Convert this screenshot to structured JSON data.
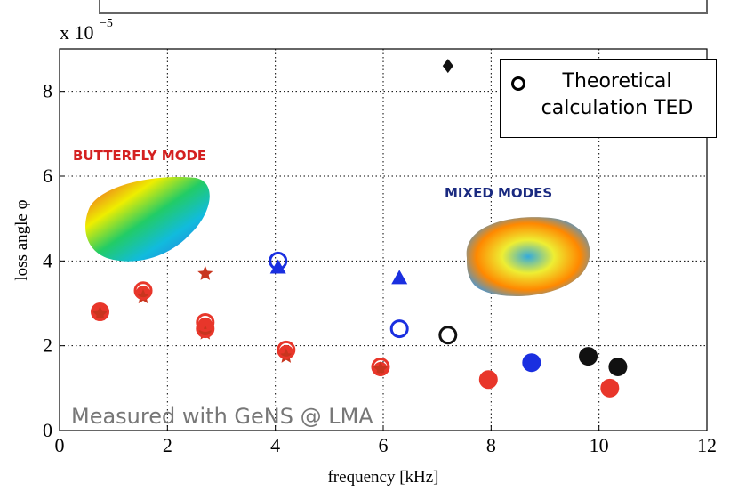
{
  "chart_data": {
    "type": "scatter",
    "axis_multiplier": "x 10",
    "axis_exponent": "−5",
    "x_label": "frequency [kHz]",
    "y_label": "loss angle φ",
    "xlim": [
      0,
      12
    ],
    "xticks": [
      0,
      2,
      4,
      6,
      8,
      10,
      12
    ],
    "ylim": [
      0,
      9
    ],
    "yticks": [
      0,
      2,
      4,
      6,
      8
    ],
    "grid": true,
    "annotations": [
      "BUTTERFLY MODE",
      "MIXED MODES",
      "Measured with GeNS @ LMA"
    ],
    "series": [
      {
        "color": "#e8362a",
        "marker": "circle",
        "filled": true,
        "x": [
          0.75,
          1.55,
          2.7,
          2.7,
          4.2,
          5.95,
          7.95,
          10.2
        ],
        "values": [
          2.8,
          3.25,
          2.5,
          2.4,
          1.85,
          1.45,
          1.2,
          1.0
        ]
      },
      {
        "color": "#c8351e",
        "marker": "star",
        "filled": true,
        "x": [
          0.75,
          1.55,
          2.7,
          2.7,
          4.2,
          5.95
        ],
        "values": [
          2.75,
          3.15,
          3.7,
          2.3,
          1.75,
          1.45
        ]
      },
      {
        "color": "#1a2fe0",
        "marker": "circle",
        "filled": true,
        "x": [
          8.75
        ],
        "values": [
          1.6
        ]
      },
      {
        "color": "#1a2fe0",
        "marker": "triangle",
        "filled": true,
        "x": [
          4.05,
          6.3
        ],
        "values": [
          3.85,
          3.6
        ]
      },
      {
        "color": "#111111",
        "marker": "circle",
        "filled": true,
        "x": [
          9.8,
          10.35
        ],
        "values": [
          1.75,
          1.5
        ]
      },
      {
        "color": "#111111",
        "marker": "diamond",
        "filled": true,
        "x": [
          7.2
        ],
        "values": [
          8.6
        ]
      },
      {
        "name": "Theoretical calculation TED",
        "color": "#000000",
        "marker": "circle",
        "filled": false,
        "colors": [
          "#e8362a",
          "#e8362a",
          "#e8362a",
          "#e8362a",
          "#e8362a",
          "#e8362a",
          "#e8362a",
          "#e8362a",
          "#1a2fe0",
          "#1a2fe0",
          "#1a2fe0",
          "#111111",
          "#111111",
          "#111111"
        ],
        "x": [
          0.75,
          1.55,
          2.7,
          2.7,
          4.2,
          5.95,
          7.95,
          10.2,
          4.05,
          6.3,
          8.75,
          7.2,
          9.8,
          10.35
        ],
        "values": [
          2.8,
          3.3,
          2.55,
          2.4,
          1.9,
          1.5,
          1.2,
          1.0,
          4.0,
          2.4,
          1.6,
          2.25,
          1.75,
          1.5
        ]
      }
    ]
  }
}
